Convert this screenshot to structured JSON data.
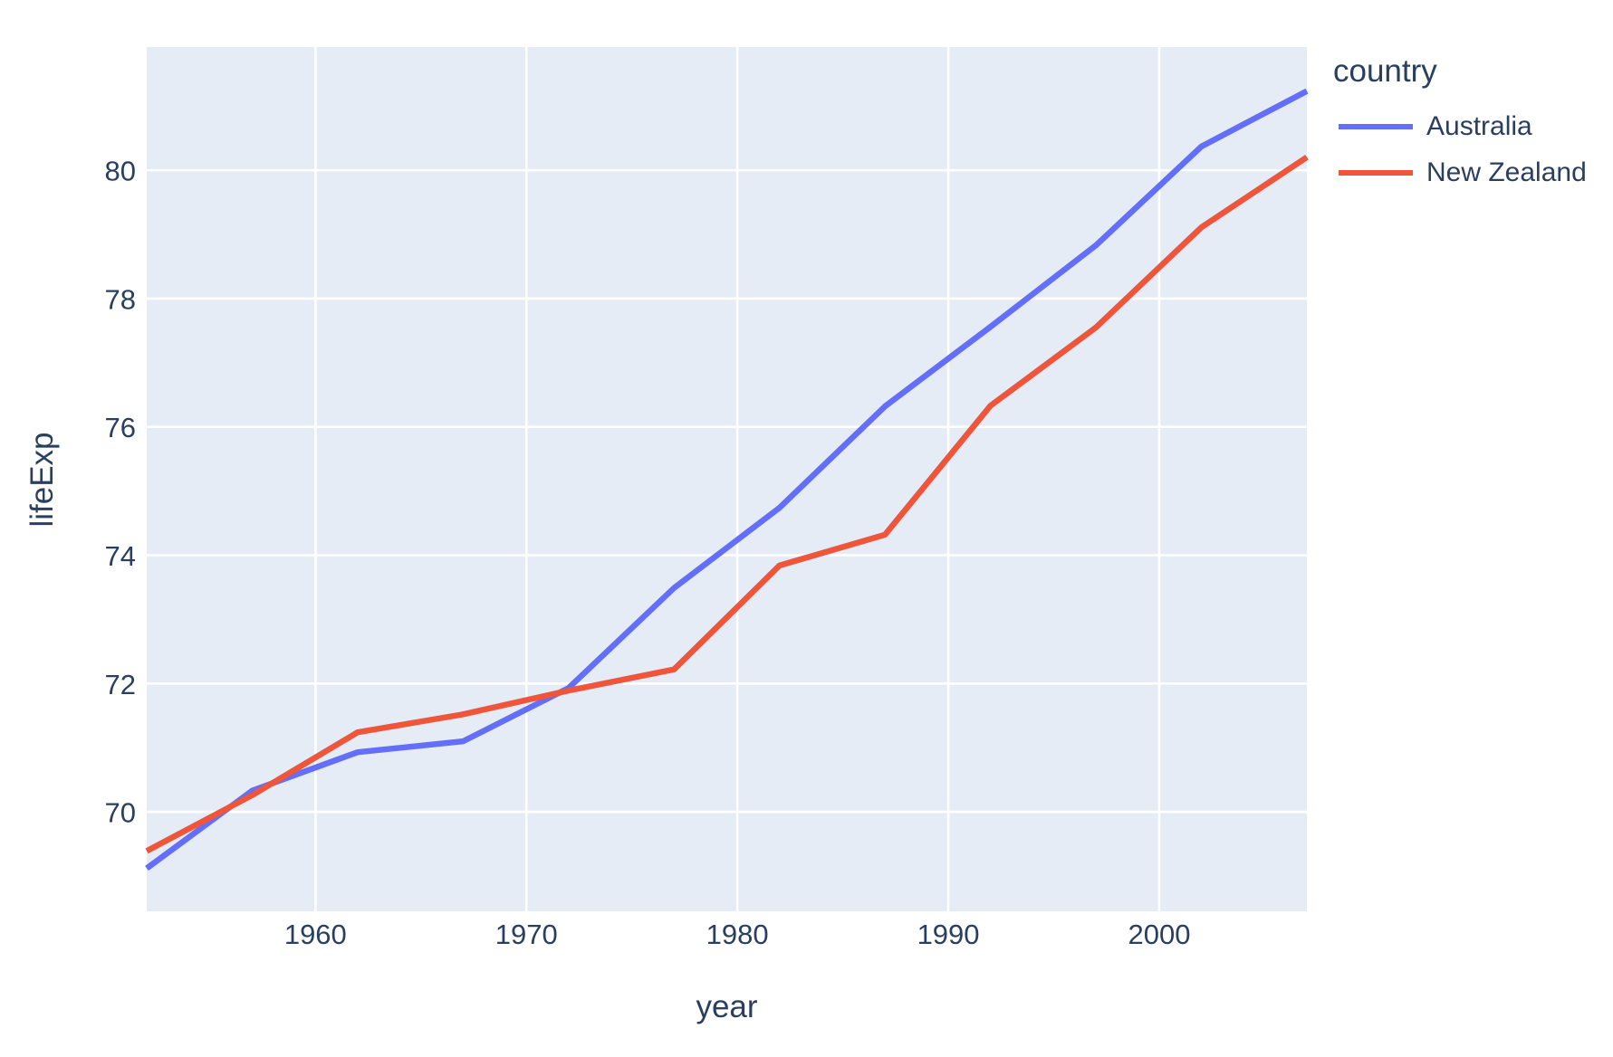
{
  "figure": {
    "background_color": "#ffffff",
    "plot_area_color": "#e5ecf6",
    "grid_color": "#ffffff",
    "text_color": "#2a3f5f"
  },
  "chart_data": {
    "type": "line",
    "title": "",
    "xlabel": "year",
    "ylabel": "lifeExp",
    "legend_title": "country",
    "legend_position": "outside-top-right",
    "grid": true,
    "x": [
      1952,
      1957,
      1962,
      1967,
      1972,
      1977,
      1982,
      1987,
      1992,
      1997,
      2002,
      2007
    ],
    "series": [
      {
        "name": "Australia",
        "color": "#636efa",
        "values": [
          69.12,
          70.33,
          70.93,
          71.1,
          71.93,
          73.49,
          74.74,
          76.32,
          77.56,
          78.83,
          80.37,
          81.235
        ]
      },
      {
        "name": "New Zealand",
        "color": "#ef553b",
        "values": [
          69.39,
          70.26,
          71.24,
          71.52,
          71.89,
          72.22,
          73.84,
          74.32,
          76.33,
          77.55,
          79.11,
          80.204
        ]
      }
    ],
    "xlim": [
      1952,
      2007
    ],
    "ylim": [
      68.45,
      81.92
    ],
    "xticks": [
      1960,
      1970,
      1980,
      1990,
      2000
    ],
    "yticks": [
      70,
      72,
      74,
      76,
      78,
      80
    ]
  }
}
